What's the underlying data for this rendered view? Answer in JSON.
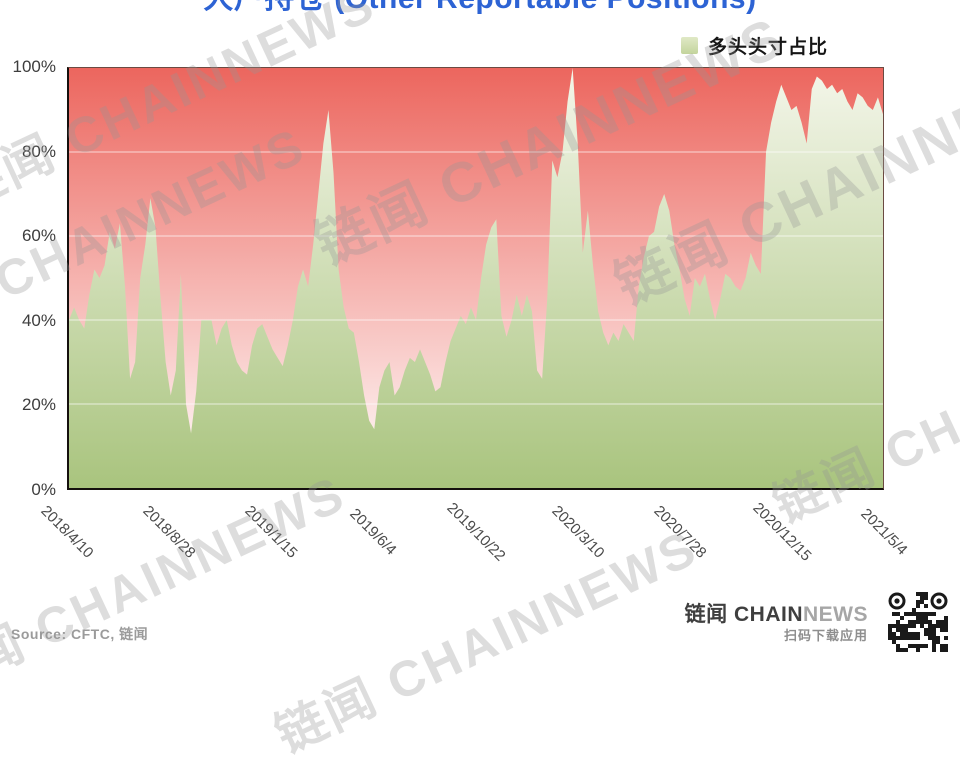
{
  "title": {
    "text": "大户持仓 (Other Reportable Positions)"
  },
  "legend": {
    "label": "多头头寸占比",
    "swatch_color": "#cfdcae"
  },
  "chart_data": {
    "type": "area",
    "title": "大户持仓 (Other Reportable Positions)",
    "series_name": "多头头寸占比",
    "x_start": "2018/4/10",
    "x_end": "2021/5/4",
    "x_interval": "weekly",
    "x_tick_labels": [
      "2018/4/10",
      "2018/8/28",
      "2019/1/15",
      "2019/6/4",
      "2019/10/22",
      "2020/3/10",
      "2020/7/28",
      "2020/12/15",
      "2021/5/4"
    ],
    "y_tick_labels": [
      "0%",
      "20%",
      "40%",
      "60%",
      "80%",
      "100%"
    ],
    "ylim": [
      0,
      100
    ],
    "grid": "horizontal-white",
    "legend_position": "top-right",
    "values": [
      40,
      43,
      40,
      38,
      46,
      52,
      50,
      53,
      61,
      57,
      63,
      48,
      26,
      30,
      50,
      58,
      69,
      62,
      45,
      30,
      22,
      28,
      51,
      20,
      13,
      23,
      40,
      40,
      40,
      34,
      38,
      40,
      34,
      30,
      28,
      27,
      34,
      38,
      39,
      36,
      33,
      31,
      29,
      34,
      40,
      48,
      52,
      48,
      58,
      70,
      82,
      90,
      75,
      52,
      43,
      38,
      37,
      30,
      22,
      16,
      14,
      24,
      28,
      30,
      22,
      24,
      28,
      31,
      30,
      33,
      30,
      27,
      23,
      24,
      30,
      35,
      38,
      41,
      39,
      43,
      40,
      50,
      58,
      62,
      64,
      41,
      36,
      40,
      46,
      41,
      46,
      42,
      28,
      26,
      45,
      78,
      74,
      80,
      92,
      100,
      82,
      56,
      66,
      53,
      42,
      37,
      34,
      37,
      35,
      39,
      37,
      35,
      48,
      55,
      60,
      61,
      67,
      70,
      66,
      58,
      52,
      45,
      41,
      50,
      48,
      51,
      45,
      40,
      45,
      51,
      50,
      48,
      47,
      50,
      56,
      53,
      51,
      80,
      87,
      92,
      96,
      93,
      90,
      91,
      87,
      82,
      95,
      98,
      97,
      95,
      96,
      94,
      95,
      92,
      90,
      94,
      93,
      91,
      90,
      93,
      89
    ],
    "colors": {
      "long_area_top": "#f4f6ea",
      "long_area_bottom": "#a9c47e",
      "short_area_top": "#ec665e",
      "short_area_bottom": "#ffffff",
      "gridline": "rgba(255,255,255,0.55)",
      "axis": "#15100e"
    }
  },
  "footer": {
    "source": "Source: CFTC, 链闻",
    "brand_prefix": "链闻 CHAIN",
    "brand_suffix": "NEWS",
    "qr_caption": "扫码下载应用"
  },
  "watermark": {
    "text": "链闻 CHAINNEWS"
  }
}
